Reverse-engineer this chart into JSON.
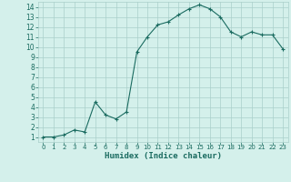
{
  "x": [
    0,
    1,
    2,
    3,
    4,
    5,
    6,
    7,
    8,
    9,
    10,
    11,
    12,
    13,
    14,
    15,
    16,
    17,
    18,
    19,
    20,
    21,
    22,
    23
  ],
  "y": [
    1,
    1,
    1.2,
    1.7,
    1.5,
    4.5,
    3.2,
    2.8,
    3.5,
    9.5,
    11.0,
    12.2,
    12.5,
    13.2,
    13.8,
    14.2,
    13.8,
    13.0,
    11.5,
    11.0,
    11.5,
    11.2,
    11.2,
    9.8
  ],
  "xlabel": "Humidex (Indice chaleur)",
  "bg_color": "#d4f0eb",
  "grid_color": "#aacfca",
  "line_color": "#1a6b60",
  "marker_color": "#1a6b60",
  "tick_label_color": "#1a6b60",
  "xlabel_color": "#1a6b60",
  "xlim": [
    -0.5,
    23.5
  ],
  "ylim": [
    0.5,
    14.5
  ],
  "yticks": [
    1,
    2,
    3,
    4,
    5,
    6,
    7,
    8,
    9,
    10,
    11,
    12,
    13,
    14
  ],
  "xticks": [
    0,
    1,
    2,
    3,
    4,
    5,
    6,
    7,
    8,
    9,
    10,
    11,
    12,
    13,
    14,
    15,
    16,
    17,
    18,
    19,
    20,
    21,
    22,
    23
  ],
  "xtick_fontsize": 5.0,
  "ytick_fontsize": 5.5,
  "xlabel_fontsize": 6.5
}
